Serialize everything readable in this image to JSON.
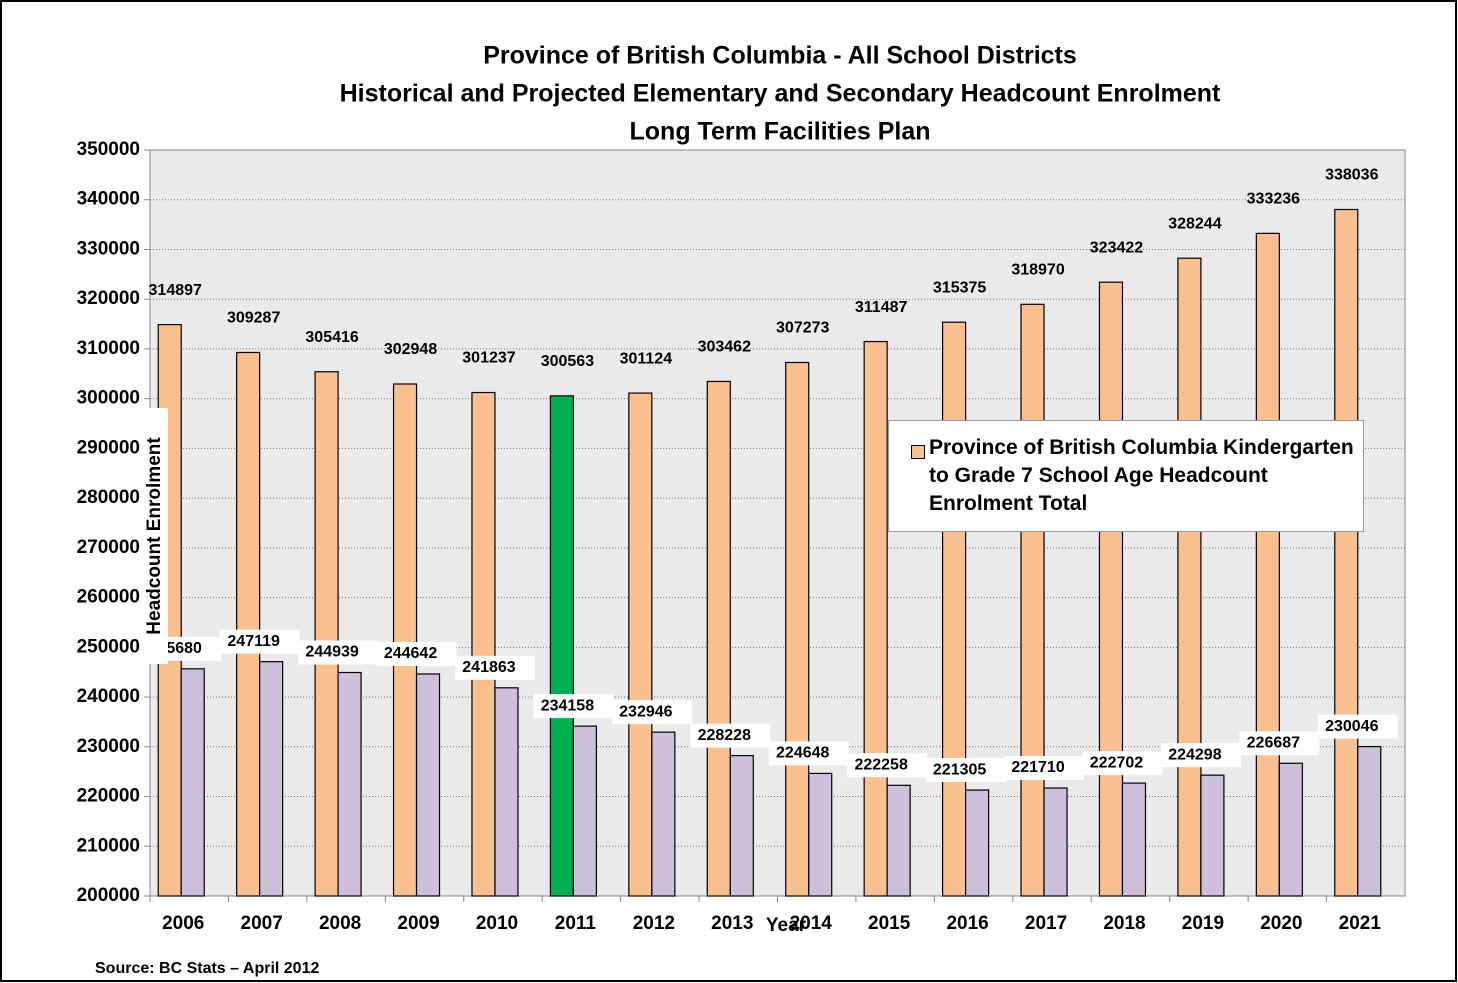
{
  "chart_data": {
    "type": "bar",
    "title": [
      "Province of British Columbia - All School Districts",
      "Historical and Projected Elementary and Secondary Headcount Enrolment",
      "Long Term Facilities Plan"
    ],
    "x_label": "Year",
    "y_label": "Headcount Enrolment",
    "source": "Source: BC Stats – April 2012",
    "categories": [
      "2006",
      "2007",
      "2008",
      "2009",
      "2010",
      "2011",
      "2012",
      "2013",
      "2014",
      "2015",
      "2016",
      "2017",
      "2018",
      "2019",
      "2020",
      "2021"
    ],
    "series": [
      {
        "name": "Province of British Columbia Kindergarten to Grade 7 School Age Headcount Enrolment Total",
        "color": "#fac090",
        "colors": [
          "#fac090",
          "#fac090",
          "#fac090",
          "#fac090",
          "#fac090",
          "#00b050",
          "#fac090",
          "#fac090",
          "#fac090",
          "#fac090",
          "#fac090",
          "#fac090",
          "#fac090",
          "#fac090",
          "#fac090",
          "#fac090"
        ],
        "values": [
          314897,
          309287,
          305416,
          302948,
          301237,
          300563,
          301124,
          303462,
          307273,
          311487,
          315375,
          318970,
          323422,
          328244,
          333236,
          338036
        ]
      },
      {
        "color": "#ccc0da",
        "values": [
          245680,
          247119,
          244939,
          244642,
          241863,
          234158,
          232946,
          228228,
          224648,
          222258,
          221305,
          221710,
          222702,
          224298,
          226687,
          230046
        ]
      }
    ],
    "ylim": [
      200000,
      350000
    ],
    "yticks": [
      200000,
      210000,
      220000,
      230000,
      240000,
      250000,
      260000,
      270000,
      280000,
      290000,
      300000,
      310000,
      320000,
      330000,
      340000,
      350000
    ],
    "grid": true,
    "legend": "right"
  }
}
